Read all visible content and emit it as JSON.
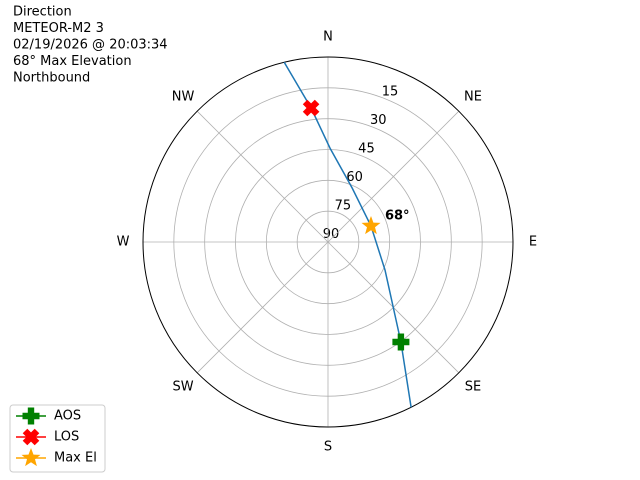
{
  "chart_data": {
    "type": "polar",
    "title_lines": [
      "Direction",
      "METEOR-M2 3",
      "02/19/2026 @ 20:03:34",
      "68° Max Elevation",
      "Northbound"
    ],
    "rlim": [
      90,
      0
    ],
    "rticks": [
      90,
      75,
      60,
      45,
      30,
      15
    ],
    "thetaticks": [
      {
        "value": 0,
        "label": "N"
      },
      {
        "value": 45,
        "label": "NE"
      },
      {
        "value": 90,
        "label": "E"
      },
      {
        "value": 135,
        "label": "SE"
      },
      {
        "value": 180,
        "label": "S"
      },
      {
        "value": 225,
        "label": "SW"
      },
      {
        "value": 270,
        "label": "W"
      },
      {
        "value": 315,
        "label": "NW"
      }
    ],
    "grid": true,
    "track": {
      "color": "#1f77b4",
      "az": [
        346.3,
        352.8,
        1.2,
        24.0,
        69.6,
        116.2,
        143.9,
        153.3
      ],
      "el": [
        0,
        24.3,
        44.3,
        61.2,
        67.7,
        59.1,
        29.8,
        0
      ]
    },
    "series": [
      {
        "name": "AOS",
        "color": "green",
        "marker": "plus",
        "az": [
          143.9
        ],
        "el": [
          29.8
        ]
      },
      {
        "name": "LOS",
        "color": "red",
        "marker": "x",
        "az": [
          352.8
        ],
        "el": [
          24.3
        ]
      },
      {
        "name": "Max El",
        "color": "orange",
        "marker": "star",
        "az": [
          69.6
        ],
        "el": [
          67.7
        ]
      }
    ],
    "annotation": "68°",
    "legend": "lower left"
  }
}
